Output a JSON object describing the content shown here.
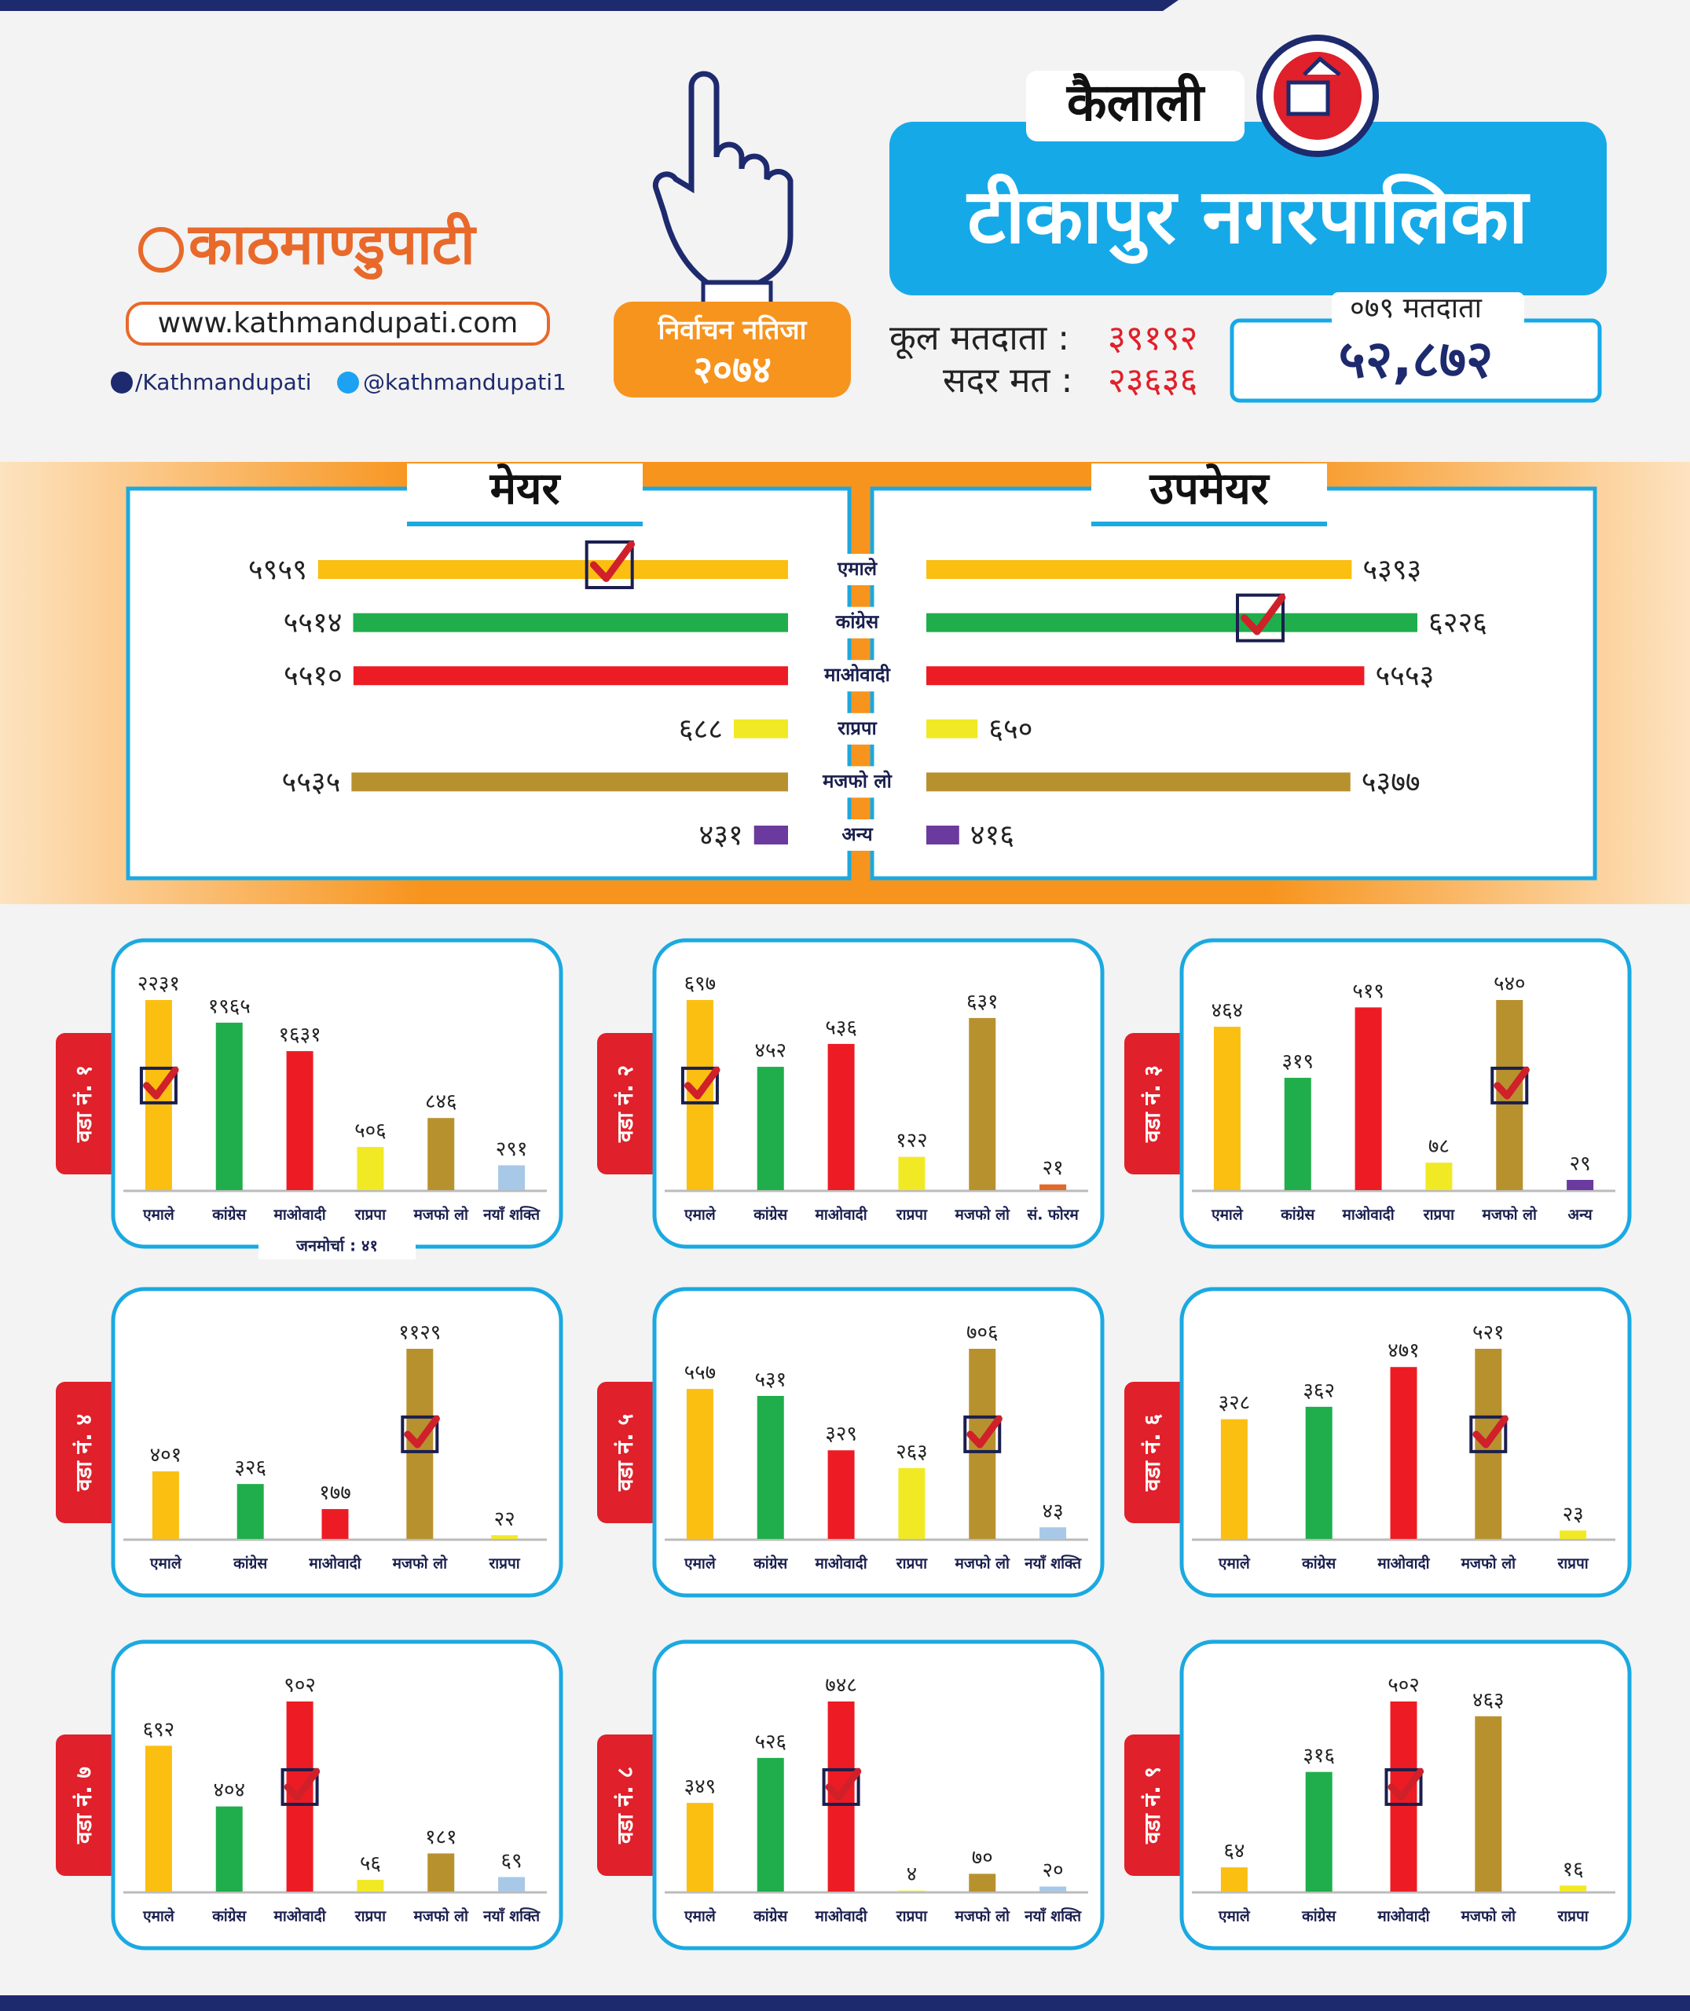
{
  "header": {
    "logo": "काठमाण्डुपाटी",
    "website": "www.kathmandupati.com",
    "facebook": "/Kathmandupati",
    "twitter": "@kathmandupati1",
    "result_label": "निर्वाचन नतिजा",
    "year": "२०७४",
    "district": "कैलाली",
    "municipality": "टीकापुर नगरपालिका",
    "total_voters_label": "कूल मतदाता :",
    "total_voters": "३९१९२",
    "valid_votes_label": "सदर मत :",
    "valid_votes": "२३६३६",
    "voters_079_label": "०७९ मतदाता",
    "voters_079": "५२,८७२"
  },
  "chart_data": [
    {
      "type": "butterfly",
      "categories": [
        "एमाले",
        "कांग्रेस",
        "माओवादी",
        "राप्रपा",
        "मजफो लो",
        "अन्य"
      ],
      "colors": [
        "#fbbf12",
        "#1fae4b",
        "#ed1c24",
        "#f2e925",
        "#b8912f",
        "#6a3a9e"
      ],
      "series": [
        {
          "name": "मेयर",
          "values": [
            5959,
            5514,
            5510,
            688,
            5535,
            431
          ],
          "value_labels": [
            "५९५९",
            "५५१४",
            "५५१०",
            "६८८",
            "५५३५",
            "४३१"
          ],
          "winner": 0
        },
        {
          "name": "उपमेयर",
          "values": [
            5393,
            6226,
            5553,
            650,
            5377,
            416
          ],
          "value_labels": [
            "५३९३",
            "६२२६",
            "५५५३",
            "६५०",
            "५३७७",
            "४१६"
          ],
          "winner": 1
        }
      ]
    },
    {
      "type": "bar",
      "title": "वडा नं. १",
      "categories": [
        "एमाले",
        "कांग्रेस",
        "माओवादी",
        "राप्रपा",
        "मजफो लो",
        "नयाँ शक्ति"
      ],
      "values": [
        2231,
        1965,
        1631,
        506,
        846,
        291
      ],
      "value_labels": [
        "२२३१",
        "१९६५",
        "१६३१",
        "५०६",
        "८४६",
        "२९१"
      ],
      "colors": [
        "#fbbf12",
        "#1fae4b",
        "#ed1c24",
        "#f2e925",
        "#b8912f",
        "#a8c8e8"
      ],
      "winner": 0,
      "note": "जनमोर्चा : ४१"
    },
    {
      "type": "bar",
      "title": "वडा नं. २",
      "categories": [
        "एमाले",
        "कांग्रेस",
        "माओवादी",
        "राप्रपा",
        "मजफो लो",
        "सं. फोरम"
      ],
      "values": [
        697,
        452,
        536,
        122,
        631,
        21
      ],
      "value_labels": [
        "६९७",
        "४५२",
        "५३६",
        "१२२",
        "६३१",
        "२१"
      ],
      "colors": [
        "#fbbf12",
        "#1fae4b",
        "#ed1c24",
        "#f2e925",
        "#b8912f",
        "#e06a2a"
      ],
      "winner": 0
    },
    {
      "type": "bar",
      "title": "वडा नं. ३",
      "categories": [
        "एमाले",
        "कांग्रेस",
        "माओवादी",
        "राप्रपा",
        "मजफो लो",
        "अन्य"
      ],
      "values": [
        464,
        319,
        519,
        78,
        540,
        29
      ],
      "value_labels": [
        "४६४",
        "३१९",
        "५१९",
        "७८",
        "५४०",
        "२९"
      ],
      "colors": [
        "#fbbf12",
        "#1fae4b",
        "#ed1c24",
        "#f2e925",
        "#b8912f",
        "#6a3a9e"
      ],
      "winner": 4
    },
    {
      "type": "bar",
      "title": "वडा नं. ४",
      "categories": [
        "एमाले",
        "कांग्रेस",
        "माओवादी",
        "मजफो लो",
        "राप्रपा"
      ],
      "values": [
        401,
        326,
        177,
        1129,
        22
      ],
      "value_labels": [
        "४०१",
        "३२६",
        "१७७",
        "११२९",
        "२२"
      ],
      "colors": [
        "#fbbf12",
        "#1fae4b",
        "#ed1c24",
        "#b8912f",
        "#f2e925"
      ],
      "winner": 3
    },
    {
      "type": "bar",
      "title": "वडा नं. ५",
      "categories": [
        "एमाले",
        "कांग्रेस",
        "माओवादी",
        "राप्रपा",
        "मजफो लो",
        "नयाँ शक्ति"
      ],
      "values": [
        557,
        531,
        329,
        263,
        706,
        43
      ],
      "value_labels": [
        "५५७",
        "५३१",
        "३२९",
        "२६३",
        "७०६",
        "४३"
      ],
      "colors": [
        "#fbbf12",
        "#1fae4b",
        "#ed1c24",
        "#f2e925",
        "#b8912f",
        "#a8c8e8"
      ],
      "winner": 4
    },
    {
      "type": "bar",
      "title": "वडा नं. ६",
      "categories": [
        "एमाले",
        "कांग्रेस",
        "माओवादी",
        "मजफो लो",
        "राप्रपा"
      ],
      "values": [
        328,
        362,
        471,
        521,
        23
      ],
      "value_labels": [
        "३२८",
        "३६२",
        "४७१",
        "५२१",
        "२३"
      ],
      "colors": [
        "#fbbf12",
        "#1fae4b",
        "#ed1c24",
        "#b8912f",
        "#f2e925"
      ],
      "winner": 3
    },
    {
      "type": "bar",
      "title": "वडा नं. ७",
      "categories": [
        "एमाले",
        "कांग्रेस",
        "माओवादी",
        "राप्रपा",
        "मजफो लो",
        "नयाँ शक्ति"
      ],
      "values": [
        692,
        404,
        902,
        56,
        181,
        69
      ],
      "value_labels": [
        "६९२",
        "४०४",
        "९०२",
        "५६",
        "१८१",
        "६९"
      ],
      "colors": [
        "#fbbf12",
        "#1fae4b",
        "#ed1c24",
        "#f2e925",
        "#b8912f",
        "#a8c8e8"
      ],
      "winner": 2
    },
    {
      "type": "bar",
      "title": "वडा नं. ८",
      "categories": [
        "एमाले",
        "कांग्रेस",
        "माओवादी",
        "राप्रपा",
        "मजफो लो",
        "नयाँ शक्ति"
      ],
      "values": [
        349,
        526,
        748,
        4,
        70,
        20
      ],
      "value_labels": [
        "३४९",
        "५२६",
        "७४८",
        "४",
        "७०",
        "२०"
      ],
      "colors": [
        "#fbbf12",
        "#1fae4b",
        "#ed1c24",
        "#f2e925",
        "#b8912f",
        "#a8c8e8"
      ],
      "winner": 2
    },
    {
      "type": "bar",
      "title": "वडा नं. ९",
      "categories": [
        "एमाले",
        "कांग्रेस",
        "माओवादी",
        "मजफो लो",
        "राप्रपा"
      ],
      "values": [
        64,
        316,
        502,
        463,
        16
      ],
      "value_labels": [
        "६४",
        "३१६",
        "५०२",
        "४६३",
        "१६"
      ],
      "colors": [
        "#fbbf12",
        "#1fae4b",
        "#ed1c24",
        "#b8912f",
        "#f2e925"
      ],
      "winner": 2
    }
  ]
}
